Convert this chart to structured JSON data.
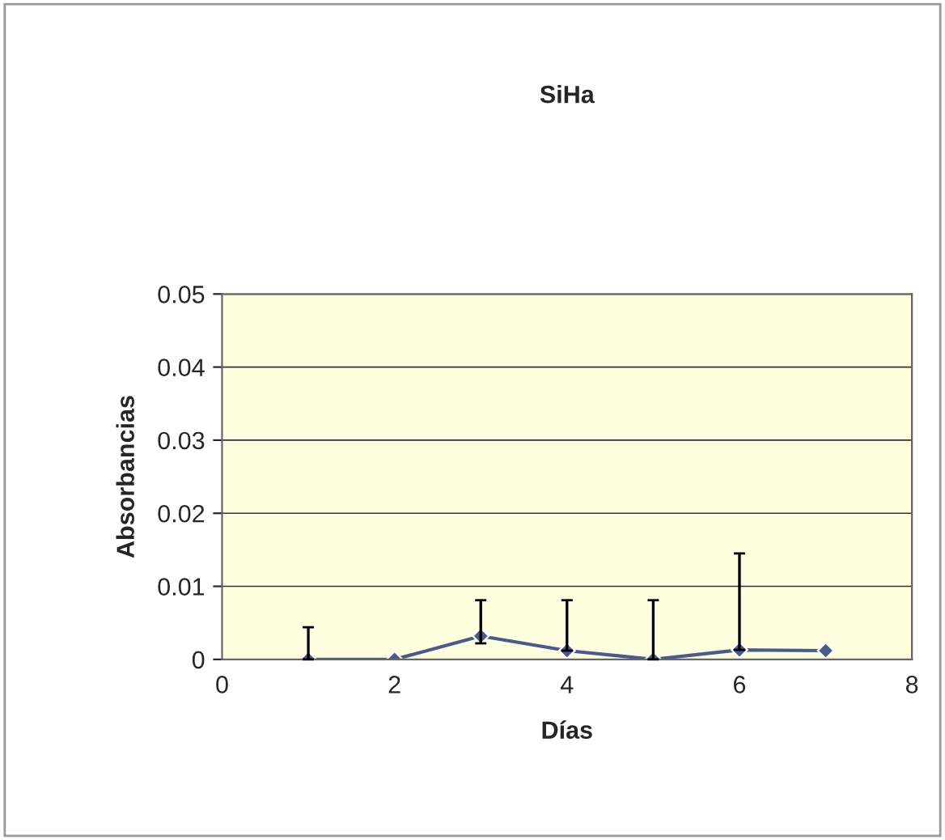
{
  "chart_data": {
    "type": "line",
    "title": "SiHa",
    "xlabel": "Días",
    "ylabel": "Absorbancias",
    "x": [
      1,
      2,
      3,
      4,
      5,
      6,
      7
    ],
    "series": [
      {
        "color": "#4a5a8a",
        "values": [
          0.0,
          0.0,
          0.0032,
          0.0012,
          0.0,
          0.0013,
          0.0012
        ],
        "errors": [
          [
            0,
            0.0044
          ],
          null,
          [
            0.0022,
            0.0081
          ],
          [
            0.0012,
            0.0081
          ],
          [
            0,
            0.0081
          ],
          [
            0.0013,
            0.0145
          ],
          null
        ]
      }
    ],
    "xlim": [
      0,
      8
    ],
    "xticks": [
      0,
      2,
      4,
      6,
      8
    ],
    "ylim": [
      0,
      0.05
    ],
    "yticks": [
      0,
      0.01,
      0.02,
      0.03,
      0.04,
      0.05
    ],
    "grid": "y",
    "marker": "diamond",
    "line_style": "solid",
    "legend": false
  }
}
